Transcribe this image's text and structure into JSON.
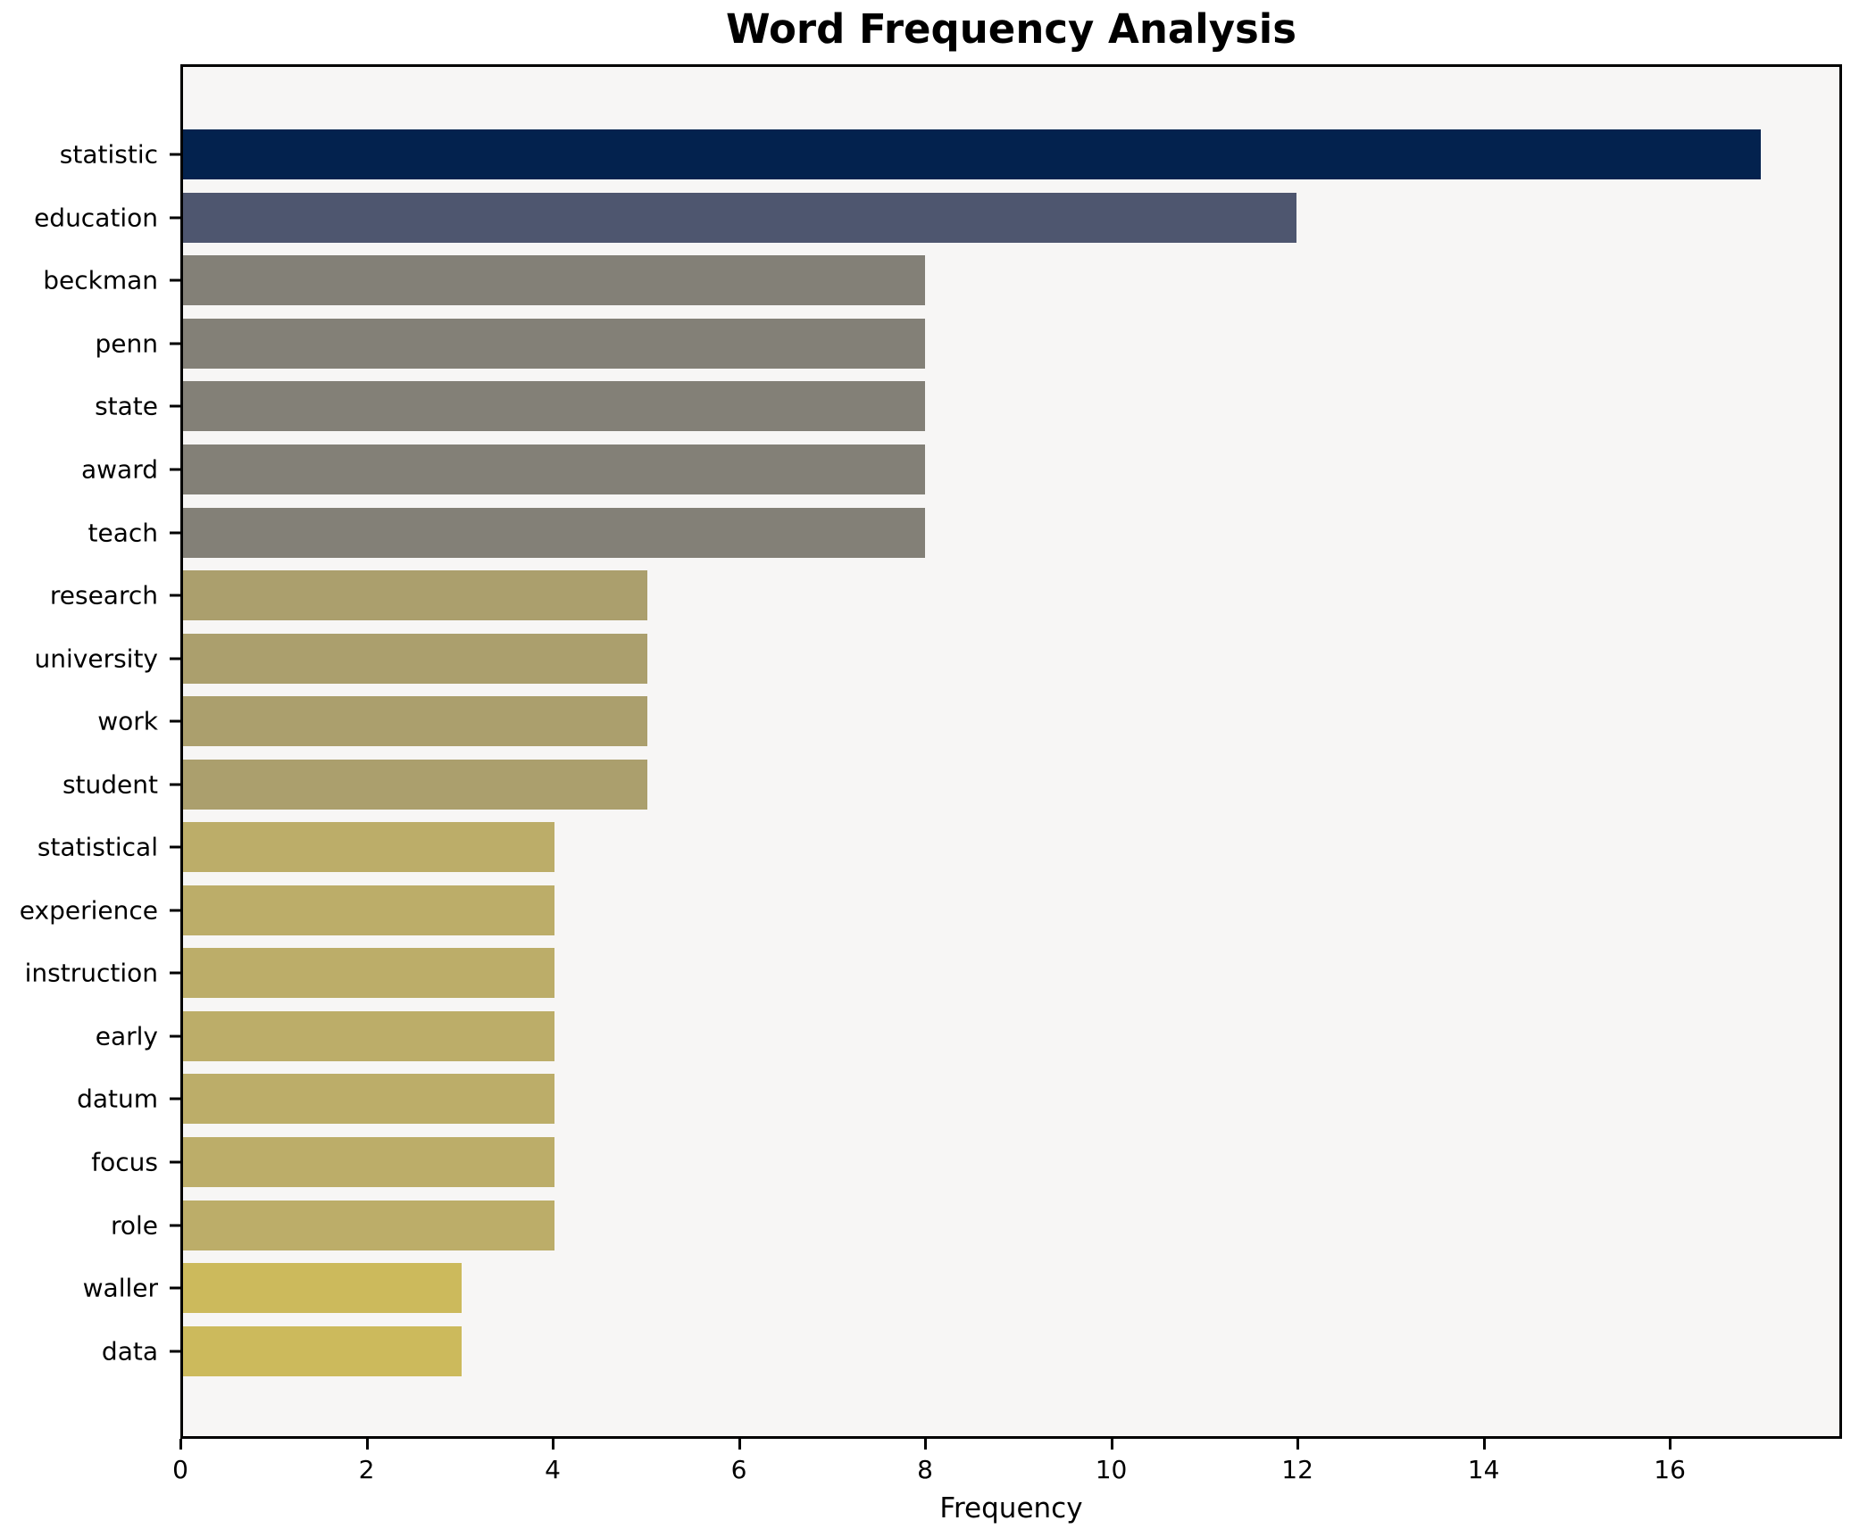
{
  "chart": {
    "title": "Word Frequency Analysis",
    "xlabel": "Frequency"
  },
  "chart_data": {
    "type": "bar",
    "orientation": "horizontal",
    "title": "Word Frequency Analysis",
    "xlabel": "Frequency",
    "ylabel": "",
    "xlim": [
      0,
      17.85
    ],
    "x_ticks": [
      0,
      2,
      4,
      6,
      8,
      10,
      12,
      14,
      16
    ],
    "grid": false,
    "legend": false,
    "colormap": "cividis",
    "plot_bg": "#f7f6f5",
    "figure_bg": "#ffffff",
    "axis_color": "#000000",
    "categories": [
      "statistic",
      "education",
      "beckman",
      "penn",
      "state",
      "award",
      "teach",
      "research",
      "university",
      "work",
      "student",
      "statistical",
      "experience",
      "instruction",
      "early",
      "datum",
      "focus",
      "role",
      "waller",
      "data"
    ],
    "values": [
      17,
      12,
      8,
      8,
      8,
      8,
      8,
      5,
      5,
      5,
      5,
      4,
      4,
      4,
      4,
      4,
      4,
      4,
      3,
      3
    ],
    "bar_colors": [
      "#03224e",
      "#4e566f",
      "#838077",
      "#838077",
      "#838077",
      "#838077",
      "#838077",
      "#ab9f6d",
      "#ab9f6d",
      "#ab9f6d",
      "#ab9f6d",
      "#bcad69",
      "#bcad69",
      "#bcad69",
      "#bcad69",
      "#bcad69",
      "#bcad69",
      "#bcad69",
      "#ccba5c",
      "#ccba5c"
    ]
  }
}
